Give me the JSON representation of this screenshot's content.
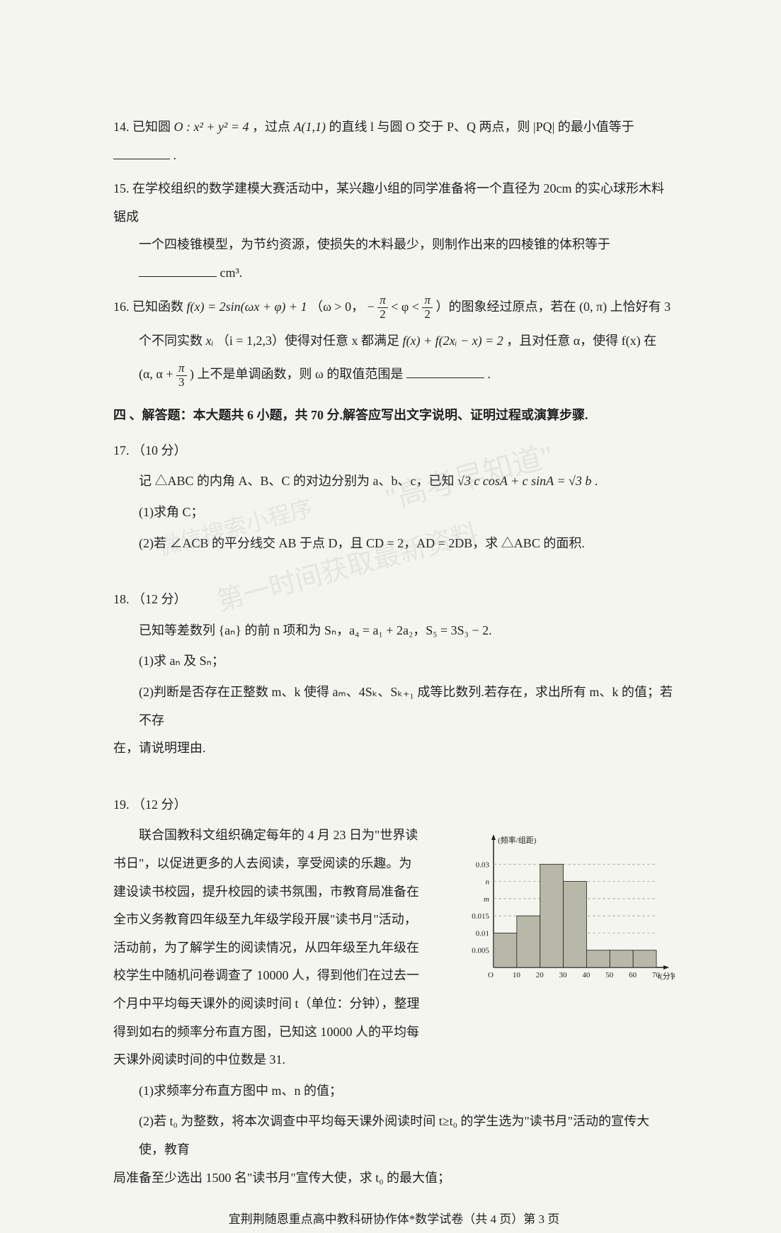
{
  "q14": {
    "num": "14.",
    "text_a": "已知圆 ",
    "eq": "O : x² + y² = 4",
    "text_b": "，过点 ",
    "pt": "A(1,1)",
    "text_c": " 的直线 l 与圆 O 交于 P、Q 两点，则 |PQ| 的最小值等于",
    "period": "."
  },
  "q15": {
    "num": "15.",
    "line1": "在学校组织的数学建模大赛活动中，某兴趣小组的同学准备将一个直径为 20cm 的实心球形木料锯成",
    "line2": "一个四棱锥模型，为节约资源，使损失的木料最少，则制作出来的四棱锥的体积等于",
    "unit": "cm³."
  },
  "q16": {
    "num": "16.",
    "text_a": "已知函数 ",
    "eq1": "f(x) = 2sin(ωx + φ) + 1",
    "text_b": "（ω > 0，",
    "neg": "−",
    "pi": "π",
    "two": "2",
    "lt": " < φ < ",
    "text_c": "）的图象经过原点，若在 (0, π) 上恰好有 3",
    "line2_a": "个不同实数 ",
    "xi": "xᵢ",
    "line2_b": "（i = 1,2,3）使得对任意 x 都满足 ",
    "eq2": "f(x) + f(2xᵢ − x) = 2",
    "line2_c": "，且对任意 α，使得 f(x) 在",
    "line3_a": "(α, α + ",
    "three": "3",
    "line3_b": ") 上不是单调函数，则 ω 的取值范围是",
    "period": "."
  },
  "section4": "四 、解答题：本大题共 6 小题，共 70 分.解答应写出文字说明、证明过程或演算步骤.",
  "q17": {
    "num": "17.",
    "pts": "（10 分）",
    "line1_a": "记 △ABC 的内角 A、B、C 的对边分别为 a、b、c，已知 ",
    "eq": "√3 c cosA + c sinA = √3 b",
    "line1_b": ".",
    "sub1": "(1)求角 C；",
    "sub2": "(2)若 ∠ACB 的平分线交 AB 于点 D，且 CD = 2，AD = 2DB，求 △ABC 的面积."
  },
  "q18": {
    "num": "18.",
    "pts": "（12 分）",
    "line1": "已知等差数列 {aₙ} 的前 n 项和为 Sₙ，a₄ = a₁ + 2a₂，S₅ = 3S₃ − 2.",
    "sub1": "(1)求 aₙ 及 Sₙ；",
    "sub2_a": "(2)判断是否存在正整数 m、k 使得 aₘ、4Sₖ、Sₖ₊₁ 成等比数列.若存在，求出所有 m、k 的值；若不存",
    "sub2_b": "在，请说明理由."
  },
  "q19": {
    "num": "19.",
    "pts": "（12 分）",
    "p1": "联合国教科文组织确定每年的 4 月 23 日为\"世界读",
    "p2": "书日\"，以促进更多的人去阅读，享受阅读的乐趣。为",
    "p3": "建设读书校园，提升校园的读书氛围，市教育局准备在",
    "p4": "全市义务教育四年级至九年级学段开展\"读书月\"活动，",
    "p5": "活动前，为了解学生的阅读情况，从四年级至九年级在",
    "p6": "校学生中随机问卷调查了 10000 人，得到他们在过去一",
    "p7": "个月中平均每天课外的阅读时间 t（单位：分钟），整理",
    "p8": "得到如右的频率分布直方图，已知这 10000 人的平均每",
    "p9": "天课外阅读时间的中位数是 31.",
    "sub1": "(1)求频率分布直方图中 m、n 的值；",
    "sub2_a": "(2)若 t₀ 为整数，将本次调查中平均每天课外阅读时间 t≥t₀ 的学生选为\"读书月\"活动的宣传大使，教育",
    "sub2_b": "局准备至少选出 1500 名\"读书月\"宣传大使，求 t₀ 的最大值；"
  },
  "chart": {
    "ylabel": "(频率/组距)",
    "xlabel": "t(分钟)",
    "xticks": [
      "O",
      "10",
      "20",
      "30",
      "40",
      "50",
      "60",
      "70"
    ],
    "yticks": [
      "0.005",
      "0.01",
      "0.015",
      "0.03"
    ],
    "ylabels_special": [
      "m",
      "n"
    ],
    "bars": [
      {
        "x": 0,
        "h": 0.01,
        "fill": "#b8b8a8"
      },
      {
        "x": 1,
        "h": 0.015,
        "fill": "#b8b8a8"
      },
      {
        "x": 2,
        "h": 0.03,
        "fill": "#b8b8a8"
      },
      {
        "x": 3,
        "h": 0.025,
        "fill": "#b8b8a8"
      },
      {
        "x": 4,
        "h": 0.005,
        "fill": "#b8b8a8"
      },
      {
        "x": 5,
        "h": 0.005,
        "fill": "#b8b8a8"
      },
      {
        "x": 6,
        "h": 0.005,
        "fill": "#b8b8a8"
      }
    ],
    "ymax": 0.035,
    "axis_color": "#222",
    "grid_color": "#999",
    "bg": "#ffffff",
    "font_size": 11
  },
  "footer": "宜荆荆随恩重点高中教科研协作体*数学试卷（共 4 页）第 3 页",
  "watermarks": {
    "w1": "\"高考早知道\"",
    "w2": "微信搜索小程序",
    "w3": "第一时间获取最新资料"
  }
}
